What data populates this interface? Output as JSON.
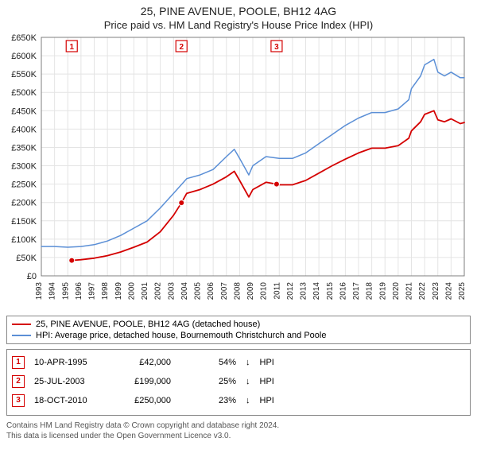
{
  "title": "25, PINE AVENUE, POOLE, BH12 4AG",
  "subtitle": "Price paid vs. HM Land Registry's House Price Index (HPI)",
  "chart": {
    "plot_bg": "#ffffff",
    "grid_color": "#e4e4e4",
    "axis_color": "#666666",
    "title_fontsize": 14,
    "subtitle_fontsize": 13,
    "tick_fontsize": 11,
    "y": {
      "min": 0,
      "max": 650,
      "step": 50,
      "labels": [
        "£0",
        "£50K",
        "£100K",
        "£150K",
        "£200K",
        "£250K",
        "£300K",
        "£350K",
        "£400K",
        "£450K",
        "£500K",
        "£550K",
        "£600K",
        "£650K"
      ]
    },
    "x": {
      "min": 1993,
      "max": 2025,
      "step": 1,
      "labels": [
        "1993",
        "1994",
        "1995",
        "1996",
        "1997",
        "1998",
        "1999",
        "2000",
        "2001",
        "2002",
        "2003",
        "2004",
        "2005",
        "2006",
        "2007",
        "2008",
        "2009",
        "2010",
        "2011",
        "2012",
        "2013",
        "2014",
        "2015",
        "2016",
        "2017",
        "2018",
        "2019",
        "2020",
        "2021",
        "2022",
        "2023",
        "2024",
        "2025"
      ]
    },
    "series": [
      {
        "name": "HPI: Average price, detached house, Bournemouth Christchurch and Poole",
        "color": "#5b8fd6",
        "width": 1.5,
        "points": [
          [
            1993,
            80
          ],
          [
            1994,
            80
          ],
          [
            1995,
            78
          ],
          [
            1996,
            80
          ],
          [
            1997,
            85
          ],
          [
            1998,
            95
          ],
          [
            1999,
            110
          ],
          [
            2000,
            130
          ],
          [
            2001,
            150
          ],
          [
            2002,
            185
          ],
          [
            2003,
            225
          ],
          [
            2004,
            265
          ],
          [
            2005,
            275
          ],
          [
            2006,
            290
          ],
          [
            2007,
            325
          ],
          [
            2007.6,
            345
          ],
          [
            2008,
            320
          ],
          [
            2008.7,
            275
          ],
          [
            2009,
            300
          ],
          [
            2010,
            325
          ],
          [
            2011,
            320
          ],
          [
            2012,
            320
          ],
          [
            2013,
            335
          ],
          [
            2014,
            360
          ],
          [
            2015,
            385
          ],
          [
            2016,
            410
          ],
          [
            2017,
            430
          ],
          [
            2018,
            445
          ],
          [
            2019,
            445
          ],
          [
            2020,
            455
          ],
          [
            2020.8,
            480
          ],
          [
            2021,
            510
          ],
          [
            2021.7,
            545
          ],
          [
            2022,
            575
          ],
          [
            2022.7,
            590
          ],
          [
            2023,
            555
          ],
          [
            2023.5,
            545
          ],
          [
            2024,
            555
          ],
          [
            2024.7,
            540
          ],
          [
            2025,
            540
          ]
        ]
      },
      {
        "name": "25, PINE AVENUE, POOLE, BH12 4AG (detached house)",
        "color": "#d40000",
        "width": 1.8,
        "points": [
          [
            1995.3,
            42
          ],
          [
            1996,
            44
          ],
          [
            1997,
            48
          ],
          [
            1998,
            55
          ],
          [
            1999,
            65
          ],
          [
            2000,
            78
          ],
          [
            2001,
            92
          ],
          [
            2002,
            120
          ],
          [
            2003,
            165
          ],
          [
            2003.6,
            199
          ],
          [
            2004,
            225
          ],
          [
            2005,
            235
          ],
          [
            2006,
            250
          ],
          [
            2007,
            270
          ],
          [
            2007.6,
            285
          ],
          [
            2008,
            260
          ],
          [
            2008.7,
            215
          ],
          [
            2009,
            235
          ],
          [
            2010,
            255
          ],
          [
            2010.8,
            250
          ],
          [
            2011,
            248
          ],
          [
            2012,
            248
          ],
          [
            2013,
            260
          ],
          [
            2014,
            280
          ],
          [
            2015,
            300
          ],
          [
            2016,
            318
          ],
          [
            2017,
            335
          ],
          [
            2018,
            348
          ],
          [
            2019,
            348
          ],
          [
            2020,
            355
          ],
          [
            2020.8,
            375
          ],
          [
            2021,
            395
          ],
          [
            2021.7,
            420
          ],
          [
            2022,
            440
          ],
          [
            2022.7,
            450
          ],
          [
            2023,
            425
          ],
          [
            2023.5,
            420
          ],
          [
            2024,
            428
          ],
          [
            2024.7,
            415
          ],
          [
            2025,
            418
          ]
        ]
      }
    ],
    "markers": [
      {
        "label": "1",
        "x": 1995.3,
        "y": 42,
        "color": "#d40000"
      },
      {
        "label": "2",
        "x": 2003.6,
        "y": 199,
        "color": "#d40000"
      },
      {
        "label": "3",
        "x": 2010.8,
        "y": 250,
        "color": "#d40000"
      }
    ]
  },
  "legend": {
    "items": [
      {
        "color": "#d40000",
        "label": "25, PINE AVENUE, POOLE, BH12 4AG (detached house)"
      },
      {
        "color": "#5b8fd6",
        "label": "HPI: Average price, detached house, Bournemouth Christchurch and Poole"
      }
    ]
  },
  "notes": {
    "arrow_down": "↓",
    "hpi_label": "HPI",
    "rows": [
      {
        "marker": "1",
        "date": "10-APR-1995",
        "price": "£42,000",
        "diff": "54%"
      },
      {
        "marker": "2",
        "date": "25-JUL-2003",
        "price": "£199,000",
        "diff": "25%"
      },
      {
        "marker": "3",
        "date": "18-OCT-2010",
        "price": "£250,000",
        "diff": "23%"
      }
    ]
  },
  "license": {
    "line1": "Contains HM Land Registry data © Crown copyright and database right 2024.",
    "line2": "This data is licensed under the Open Government Licence v3.0."
  }
}
